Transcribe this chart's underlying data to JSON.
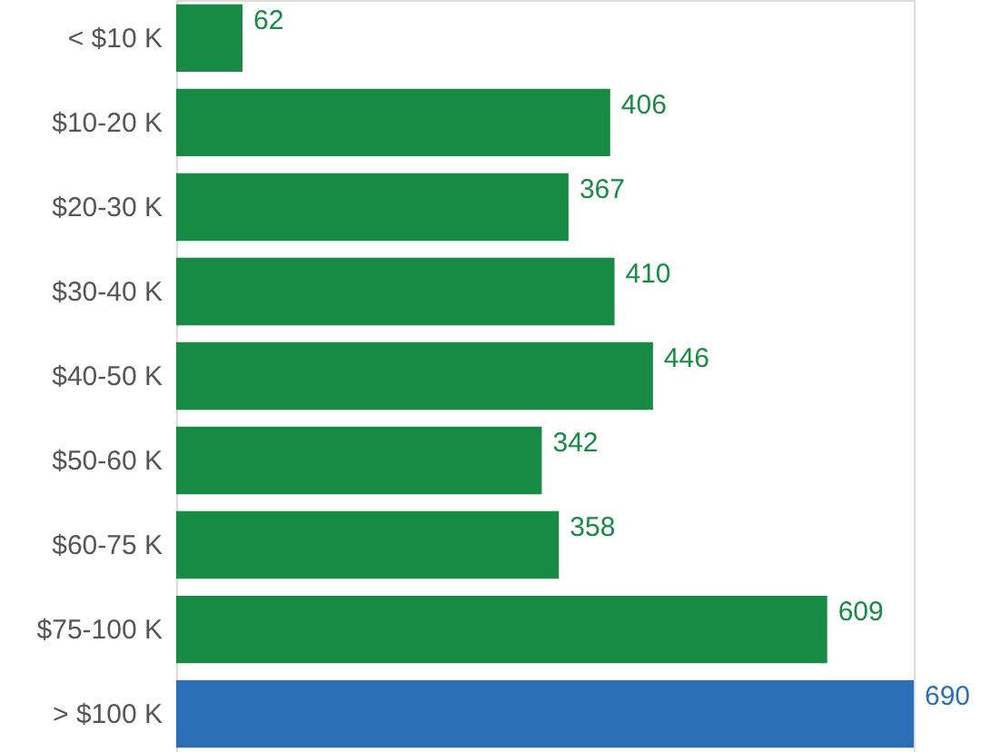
{
  "chart_data": {
    "type": "bar",
    "orientation": "horizontal",
    "categories": [
      "< $10 K",
      "$10-20 K",
      "$20-30 K",
      "$30-40 K",
      "$40-50 K",
      "$50-60 K",
      "$60-75 K",
      "$75-100 K",
      "> $100 K"
    ],
    "values": [
      62,
      406,
      367,
      410,
      446,
      342,
      358,
      609,
      690
    ],
    "colors": [
      "#178a43",
      "#178a43",
      "#178a43",
      "#178a43",
      "#178a43",
      "#178a43",
      "#178a43",
      "#178a43",
      "#2a6fb8"
    ],
    "data_labels": true,
    "grid": false
  }
}
